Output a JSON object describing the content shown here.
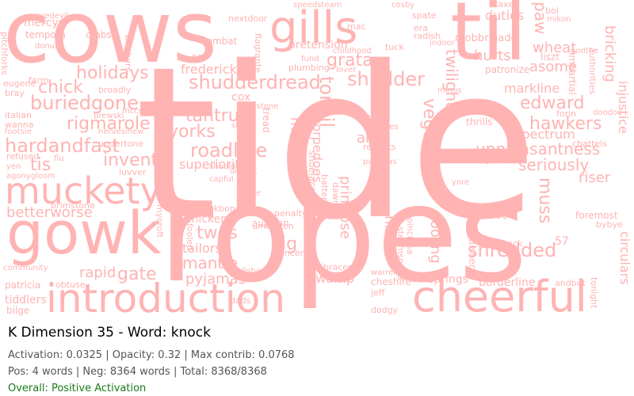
{
  "title": "K Dimension 35 - Word: knock",
  "stats_line1": "Activation: 0.0325 | Opacity: 0.32 | Max contrib: 0.0768",
  "stats_line2": "Pos: 4 words | Neg: 8364 words | Total: 8368/8368",
  "overall": "Overall: Positive Activation",
  "colors": {
    "word": "#ffb3b3",
    "overall": "#1a7a1a",
    "background": "#ffffff"
  },
  "words": {
    "tide": "tide",
    "ropes": "ropes",
    "cows": "cows",
    "til": "til",
    "gills": "gills",
    "gowk": "gowk",
    "muckety": "muckety",
    "introduction": "introduction",
    "cheerful": "cheerful",
    "shudderdread": "shudderdread",
    "shudder": "shudder",
    "grata": "grata",
    "holidays": "holidays",
    "chick": "chick",
    "buriedgone": "buriedgone",
    "rigmarole": "rigmarole",
    "hardandfast": "hardandfast",
    "tis": "tis",
    "invent": "invent",
    "betterworse": "betterworse",
    "tantrum": "tantrum",
    "yorks": "yorks",
    "roadline": "roadline",
    "superiority": "superiority",
    "twos": "twos",
    "tailors": "tailors",
    "mantle": "mantle",
    "pyjamas": "pyjamas",
    "gate": "gate",
    "rapid": "rapid",
    "edward": "edward",
    "hawkers": "hawkers",
    "unpleasantness": "unpleasantness",
    "seriously": "seriously",
    "shredded": "shredded",
    "spectrum": "spectrum",
    "riser": "riser",
    "markline": "markline",
    "asome": "asome",
    "wheat": "wheat",
    "hurts": "hurts",
    "duties": "duties",
    "frederick": "frederick",
    "pretension": "pretension",
    "cox": "cox",
    "rig": "rig",
    "aisle": "aisle",
    "tonsil": "tonsil",
    "vegemite": "vegemite",
    "twilight": "twilight",
    "muss": "muss",
    "cooling": "cooling",
    "hissel": "hissel",
    "primrose": "primrose",
    "swamp": "swamp",
    "springs": "springs",
    "borderline": "borderline",
    "cheshire": "cheshire",
    "mercys": "mercys",
    "tempora": "tempora",
    "crabs": "crabs",
    "donuts": "donuts",
    "nextdoor": "nextdoor",
    "combat": "combat",
    "speedsteam": "speedsteam",
    "mac": "mac",
    "tuck": "tuck",
    "radish": "radish",
    "mobbrigade": "mobbrigade",
    "taxes": "taxes",
    "bol": "bol",
    "mikon": "mikon",
    "paw": "paw",
    "bricking": "bricking",
    "injustice": "injustice",
    "circulars": "circulars",
    "foremost": "foremost",
    "asbe": "asbe",
    "frack": "frack",
    "tiddlers": "tiddlers",
    "bilge": "bilge",
    "patricia": "patricia",
    "obtuse": "obtuse",
    "farm": "farm",
    "eugene": "eugene",
    "bray": "bray",
    "italian": "italian",
    "wanna": "wanna",
    "footsie": "footsie",
    "refused": "refused",
    "flu": "flu",
    "yen": "yen",
    "albert": "albert",
    "thrills": "thrills",
    "wallet": "wallet",
    "chattels": "chattels",
    "unwritten": "unwritten",
    "autumn": "autumn",
    "penalty": "penalty",
    "cancer": "cancer",
    "thickens": "thickens",
    "backbone": "backbone",
    "dads": "dads",
    "jeff": "jeff",
    "dodgy": "dodgy",
    "andbut": "andbut",
    "fund": "fund",
    "plumbing": "plumbing",
    "rhetoric": "rhetoric",
    "torpedoes": "torpedoes",
    "repeats": "repeats",
    "pajamas": "pajamas",
    "keystone": "keystone",
    "brewski": "brewski",
    "tucker": "tucker",
    "capful": "capful",
    "district": "district",
    "luvver": "luvver",
    "community": "community",
    "brimstone": "brimstone",
    "mycroft": "mycroft",
    "fooled": "fooled",
    "braces": "braces",
    "tonight": "tonight",
    "bybye": "bybye",
    "godthe": "godthe",
    "liszt": "liszt",
    "impartial": "impartial",
    "patronize": "patronize",
    "gtfo": "gtfo",
    "yore": "yore",
    "minus": "minus",
    "indoor": "indoor",
    "spate": "spate",
    "cosby": "cosby",
    "ngo": "ngo",
    "broadly": "broadly",
    "nervesinew": "nervesinew",
    "undertone": "undertone",
    "shoulder": "shoulder",
    "shoelaces": "shoelaces",
    "steamspeed": "steamspeed",
    "poinciana": "poinciana",
    "callshave": "callshave",
    "sobbed": "sobbed",
    "quite": "quite",
    "skis": "skis",
    "tread": "tread",
    "mccoy": "mccoy",
    "era": "era",
    "brothers": "brothers",
    "laws": "laws",
    "fifty": "fifty",
    "spanish": "spanish",
    "daredevil": "daredevil",
    "pitchforks": "pitchforks",
    "forin": "forin",
    "doodoo": "doodoo",
    "imitates": "imitates",
    "warren": "warren",
    "dawned": "dawned",
    "fifteen": "fifteen",
    "fifty_seven": "57",
    "agonygloom": "agonygloom",
    "extinguisher": "extinguisher",
    "flagrante": "flagrante",
    "batteries": "batteries",
    "childhood": "childhood",
    "lover": "lover",
    "storage": "storage",
    "authorities": "authorities",
    "pinstaff": "pinstaff",
    "eyeopener": "eyeopener",
    "kicks": "kicks",
    "entered": "entered",
    "partner": "partner",
    "entered2": "entered"
  }
}
